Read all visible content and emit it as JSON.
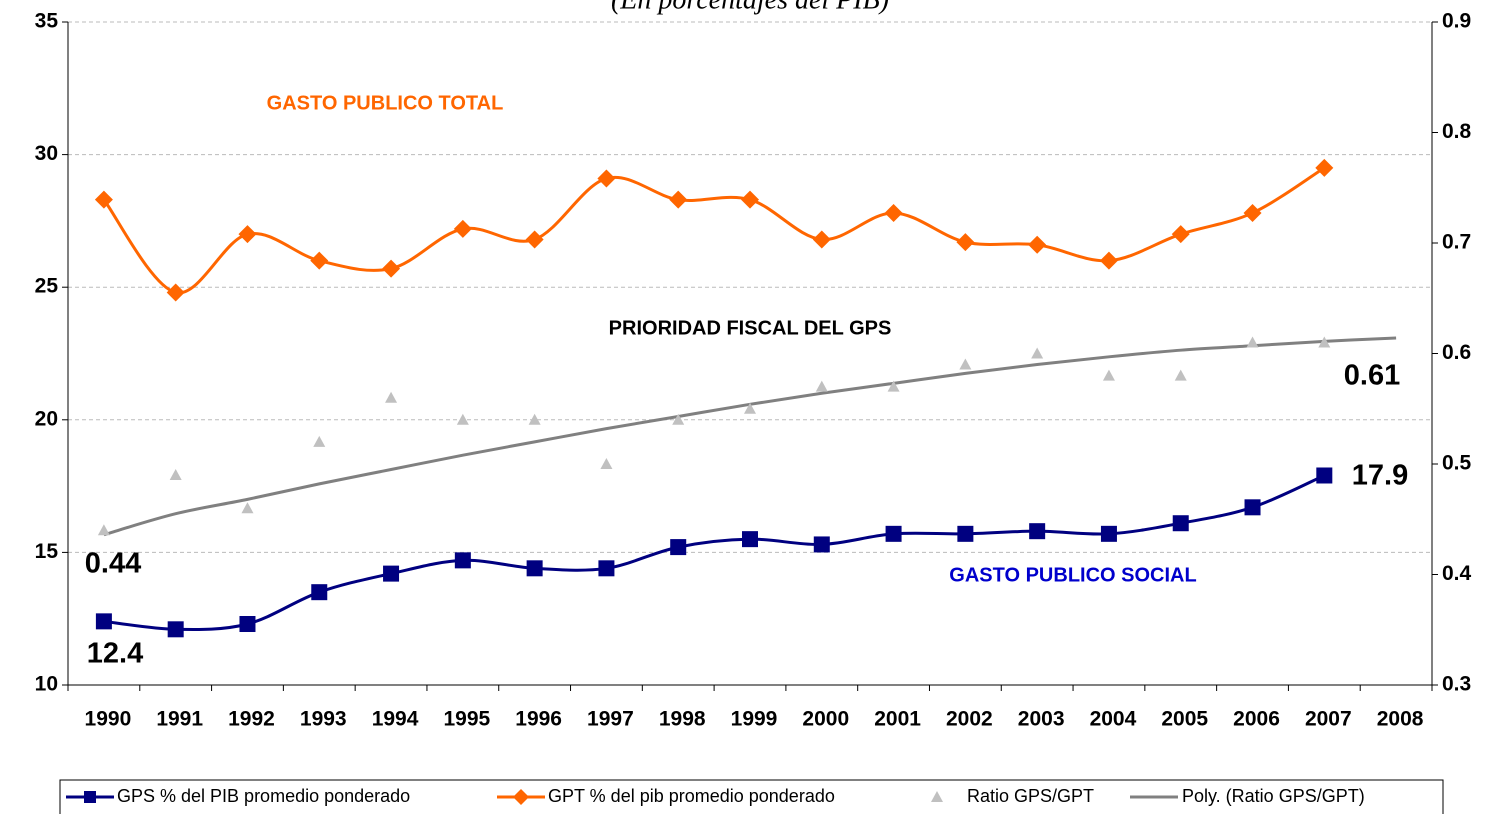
{
  "chart_data": {
    "type": "line",
    "subtitle": "(En porcentajes del PIB)",
    "categories": [
      "1990",
      "1991",
      "1992",
      "1993",
      "1994",
      "1995",
      "1996",
      "1997",
      "1998",
      "1999",
      "2000",
      "2001",
      "2002",
      "2003",
      "2004",
      "2005",
      "2006",
      "2007",
      "2008"
    ],
    "series": [
      {
        "name": "GPS % del PIB promedio ponderado",
        "color": "#000080",
        "marker": "square",
        "values": [
          12.4,
          12.1,
          12.3,
          13.5,
          14.2,
          14.7,
          14.4,
          14.4,
          15.2,
          15.5,
          15.3,
          15.7,
          15.7,
          15.8,
          15.7,
          16.1,
          16.7,
          17.9,
          null
        ]
      },
      {
        "name": "GPT % del pib promedio ponderado",
        "color": "#FF6600",
        "marker": "diamond",
        "values": [
          28.3,
          24.8,
          27.0,
          26.0,
          25.7,
          27.2,
          26.8,
          29.1,
          28.3,
          28.3,
          26.8,
          27.8,
          26.7,
          26.6,
          26.0,
          27.0,
          27.8,
          29.5,
          null
        ]
      },
      {
        "name": "Ratio GPS/GPT",
        "color": "#C0C0C0",
        "marker": "triangle",
        "axis": "y2",
        "values": [
          0.44,
          0.49,
          0.46,
          0.52,
          0.56,
          0.54,
          0.54,
          0.5,
          0.54,
          0.55,
          0.57,
          0.57,
          0.59,
          0.6,
          0.58,
          0.58,
          0.61,
          0.61,
          null
        ]
      },
      {
        "name": "Poly. (Ratio GPS/GPT)",
        "color": "#808080",
        "marker": "none",
        "axis": "y2",
        "values": [
          0.436,
          0.455,
          0.468,
          0.482,
          0.495,
          0.508,
          0.52,
          0.532,
          0.543,
          0.554,
          0.564,
          0.573,
          0.582,
          0.59,
          0.597,
          0.603,
          0.607,
          0.611,
          0.614
        ]
      }
    ],
    "ylim": [
      10,
      35
    ],
    "yticks": [
      10,
      15,
      20,
      25,
      30,
      35
    ],
    "y2lim": [
      0.3,
      0.9
    ],
    "y2ticks": [
      0.3,
      0.4,
      0.5,
      0.6,
      0.7,
      0.8,
      0.9
    ],
    "grid": true,
    "annotations": [
      {
        "text": "GASTO PUBLICO TOTAL",
        "color": "#FF6600"
      },
      {
        "text": "PRIORIDAD FISCAL DEL GPS",
        "color": "#000000"
      },
      {
        "text": "GASTO PUBLICO SOCIAL",
        "color": "#0000CC"
      },
      {
        "text": "0.61",
        "color": "#000000"
      },
      {
        "text": "0.44",
        "color": "#000000"
      },
      {
        "text": "17.9",
        "color": "#000000"
      },
      {
        "text": "12.4",
        "color": "#000000"
      }
    ]
  }
}
